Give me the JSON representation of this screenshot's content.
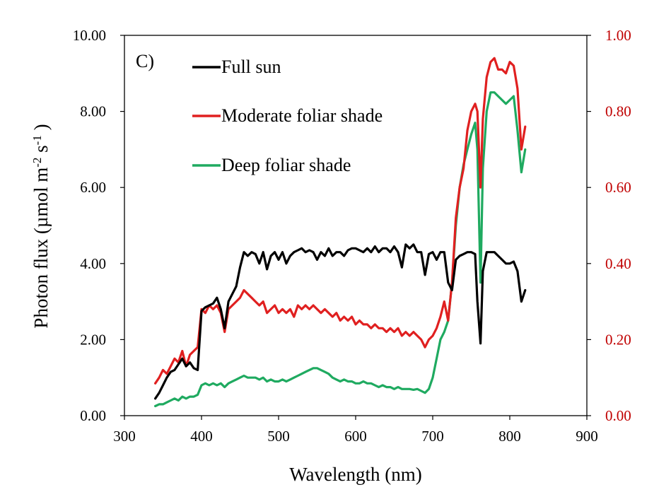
{
  "chart_data": {
    "type": "line",
    "panel_label": "C)",
    "xlabel": "Wavelength (nm)",
    "ylabel_parts": [
      "Photon flux (µmol m",
      "-2",
      " s",
      "-1",
      " )"
    ],
    "xlim": [
      300,
      900
    ],
    "ylim_left": [
      0,
      10
    ],
    "ylim_right": [
      0,
      1
    ],
    "x_ticks": [
      "300",
      "400",
      "500",
      "600",
      "700",
      "800",
      "900"
    ],
    "y_left_ticks": [
      "0.00",
      "2.00",
      "4.00",
      "6.00",
      "8.00",
      "10.00"
    ],
    "y_right_ticks": [
      "0.00",
      "0.20",
      "0.40",
      "0.60",
      "0.80",
      "1.00"
    ],
    "right_axis_color": "#c00000",
    "series": [
      {
        "name": "Full sun",
        "color": "#000000",
        "axis": "left",
        "x": [
          340,
          345,
          350,
          355,
          360,
          365,
          370,
          375,
          380,
          385,
          390,
          395,
          400,
          405,
          410,
          415,
          420,
          425,
          430,
          435,
          440,
          445,
          450,
          455,
          460,
          465,
          470,
          475,
          480,
          485,
          490,
          495,
          500,
          505,
          510,
          515,
          520,
          525,
          530,
          535,
          540,
          545,
          550,
          555,
          560,
          565,
          570,
          575,
          580,
          585,
          590,
          595,
          600,
          605,
          610,
          615,
          620,
          625,
          630,
          635,
          640,
          645,
          650,
          655,
          660,
          665,
          670,
          675,
          680,
          685,
          690,
          695,
          700,
          705,
          710,
          715,
          720,
          725,
          730,
          735,
          740,
          745,
          750,
          755,
          758,
          762,
          765,
          770,
          775,
          780,
          785,
          790,
          795,
          800,
          805,
          810,
          815,
          820
        ],
        "y": [
          0.45,
          0.6,
          0.8,
          1.0,
          1.15,
          1.2,
          1.35,
          1.5,
          1.3,
          1.4,
          1.25,
          1.2,
          2.75,
          2.85,
          2.9,
          2.95,
          3.1,
          2.8,
          2.3,
          3.0,
          3.2,
          3.4,
          3.9,
          4.3,
          4.2,
          4.3,
          4.25,
          4.0,
          4.3,
          3.85,
          4.2,
          4.3,
          4.1,
          4.3,
          4.0,
          4.2,
          4.3,
          4.35,
          4.4,
          4.3,
          4.35,
          4.3,
          4.1,
          4.3,
          4.2,
          4.4,
          4.2,
          4.3,
          4.3,
          4.2,
          4.35,
          4.4,
          4.4,
          4.35,
          4.3,
          4.4,
          4.3,
          4.45,
          4.3,
          4.4,
          4.4,
          4.3,
          4.45,
          4.3,
          3.9,
          4.5,
          4.4,
          4.5,
          4.3,
          4.3,
          3.7,
          4.25,
          4.3,
          4.1,
          4.3,
          4.3,
          3.5,
          3.3,
          4.1,
          4.2,
          4.25,
          4.3,
          4.3,
          4.25,
          3.0,
          1.9,
          3.8,
          4.3,
          4.3,
          4.3,
          4.2,
          4.1,
          4.0,
          4.0,
          4.05,
          3.8,
          3.0,
          3.3
        ]
      },
      {
        "name": "Moderate foliar shade",
        "color": "#e02020",
        "axis": "right",
        "x": [
          340,
          345,
          350,
          355,
          360,
          365,
          370,
          375,
          380,
          385,
          390,
          395,
          400,
          405,
          410,
          415,
          420,
          425,
          430,
          435,
          440,
          445,
          450,
          455,
          460,
          465,
          470,
          475,
          480,
          485,
          490,
          495,
          500,
          505,
          510,
          515,
          520,
          525,
          530,
          535,
          540,
          545,
          550,
          555,
          560,
          565,
          570,
          575,
          580,
          585,
          590,
          595,
          600,
          605,
          610,
          615,
          620,
          625,
          630,
          635,
          640,
          645,
          650,
          655,
          660,
          665,
          670,
          675,
          680,
          685,
          690,
          695,
          700,
          705,
          710,
          715,
          720,
          725,
          730,
          735,
          740,
          745,
          750,
          755,
          758,
          762,
          765,
          770,
          775,
          780,
          785,
          790,
          795,
          800,
          805,
          810,
          815,
          820
        ],
        "y": [
          0.085,
          0.1,
          0.12,
          0.11,
          0.13,
          0.15,
          0.14,
          0.17,
          0.13,
          0.16,
          0.17,
          0.18,
          0.28,
          0.27,
          0.29,
          0.28,
          0.29,
          0.27,
          0.22,
          0.28,
          0.29,
          0.3,
          0.31,
          0.33,
          0.32,
          0.31,
          0.3,
          0.29,
          0.3,
          0.27,
          0.28,
          0.29,
          0.27,
          0.28,
          0.27,
          0.28,
          0.26,
          0.29,
          0.28,
          0.29,
          0.28,
          0.29,
          0.28,
          0.27,
          0.28,
          0.27,
          0.26,
          0.27,
          0.25,
          0.26,
          0.25,
          0.26,
          0.24,
          0.25,
          0.24,
          0.24,
          0.23,
          0.24,
          0.23,
          0.23,
          0.22,
          0.23,
          0.22,
          0.23,
          0.21,
          0.22,
          0.21,
          0.22,
          0.21,
          0.2,
          0.18,
          0.2,
          0.21,
          0.23,
          0.26,
          0.3,
          0.25,
          0.35,
          0.52,
          0.6,
          0.65,
          0.75,
          0.8,
          0.82,
          0.8,
          0.6,
          0.78,
          0.89,
          0.93,
          0.94,
          0.91,
          0.91,
          0.9,
          0.93,
          0.92,
          0.86,
          0.7,
          0.76
        ]
      },
      {
        "name": "Deep foliar shade",
        "color": "#1faa60",
        "axis": "right",
        "x": [
          340,
          345,
          350,
          355,
          360,
          365,
          370,
          375,
          380,
          385,
          390,
          395,
          400,
          405,
          410,
          415,
          420,
          425,
          430,
          435,
          440,
          445,
          450,
          455,
          460,
          465,
          470,
          475,
          480,
          485,
          490,
          495,
          500,
          505,
          510,
          515,
          520,
          525,
          530,
          535,
          540,
          545,
          550,
          555,
          560,
          565,
          570,
          575,
          580,
          585,
          590,
          595,
          600,
          605,
          610,
          615,
          620,
          625,
          630,
          635,
          640,
          645,
          650,
          655,
          660,
          665,
          670,
          675,
          680,
          685,
          690,
          695,
          700,
          705,
          710,
          715,
          720,
          725,
          730,
          735,
          740,
          745,
          750,
          755,
          758,
          762,
          765,
          770,
          775,
          780,
          785,
          790,
          795,
          800,
          805,
          810,
          815,
          820
        ],
        "y": [
          0.025,
          0.03,
          0.03,
          0.035,
          0.04,
          0.045,
          0.04,
          0.05,
          0.045,
          0.05,
          0.05,
          0.055,
          0.08,
          0.085,
          0.08,
          0.085,
          0.08,
          0.085,
          0.075,
          0.085,
          0.09,
          0.095,
          0.1,
          0.105,
          0.1,
          0.1,
          0.1,
          0.095,
          0.1,
          0.09,
          0.095,
          0.09,
          0.09,
          0.095,
          0.09,
          0.095,
          0.1,
          0.105,
          0.11,
          0.115,
          0.12,
          0.125,
          0.125,
          0.12,
          0.115,
          0.11,
          0.1,
          0.095,
          0.09,
          0.095,
          0.09,
          0.09,
          0.085,
          0.085,
          0.09,
          0.085,
          0.085,
          0.08,
          0.075,
          0.08,
          0.075,
          0.075,
          0.07,
          0.075,
          0.07,
          0.07,
          0.07,
          0.068,
          0.07,
          0.065,
          0.06,
          0.07,
          0.1,
          0.15,
          0.2,
          0.22,
          0.25,
          0.35,
          0.5,
          0.6,
          0.66,
          0.7,
          0.74,
          0.77,
          0.7,
          0.35,
          0.65,
          0.8,
          0.85,
          0.85,
          0.84,
          0.83,
          0.82,
          0.83,
          0.84,
          0.75,
          0.64,
          0.7
        ]
      }
    ]
  }
}
